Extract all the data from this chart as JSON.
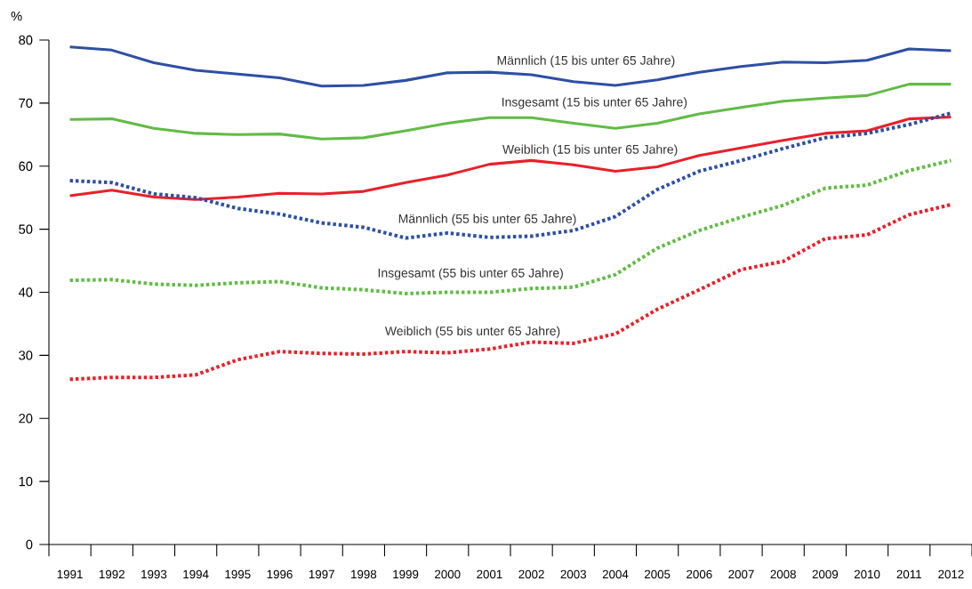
{
  "chart_data": {
    "type": "line",
    "ylabel": "%",
    "categories": [
      "1991",
      "1992",
      "1993",
      "1994",
      "1995",
      "1996",
      "1997",
      "1998",
      "1999",
      "2000",
      "2001",
      "2002",
      "2003",
      "2004",
      "2005",
      "2006",
      "2007",
      "2008",
      "2009",
      "2010",
      "2011",
      "2012"
    ],
    "series": [
      {
        "name": "Männlich (15 bis unter 65 Jahre)",
        "color": "#2e4fa3",
        "line_style": "solid",
        "values": [
          78.9,
          78.4,
          76.4,
          75.2,
          74.6,
          74.0,
          72.7,
          72.8,
          73.6,
          74.8,
          74.9,
          74.5,
          73.4,
          72.8,
          73.7,
          74.9,
          75.8,
          76.5,
          76.4,
          76.8,
          78.6,
          78.3
        ]
      },
      {
        "name": "Insgesamt  (15 bis unter 65 Jahre)",
        "color": "#62bb46",
        "line_style": "solid",
        "values": [
          67.4,
          67.5,
          66.0,
          65.2,
          65.0,
          65.1,
          64.3,
          64.5,
          65.6,
          66.8,
          67.7,
          67.7,
          66.8,
          66.0,
          66.8,
          68.3,
          69.3,
          70.3,
          70.8,
          71.2,
          73.0,
          73.0
        ]
      },
      {
        "name": "Weiblich (15 bis unter 65 Jahre)",
        "color": "#e8202a",
        "line_style": "solid",
        "values": [
          55.3,
          56.2,
          55.1,
          54.7,
          55.1,
          55.7,
          55.6,
          56.0,
          57.4,
          58.6,
          60.3,
          60.9,
          60.2,
          59.2,
          59.9,
          61.7,
          62.9,
          64.1,
          65.2,
          65.6,
          67.5,
          67.8
        ]
      },
      {
        "name": "Männlich (55 bis unter 65 Jahre)",
        "color": "#2e4fa3",
        "line_style": "dotted",
        "values": [
          57.7,
          57.4,
          55.6,
          55.0,
          53.3,
          52.4,
          51.0,
          50.3,
          48.6,
          49.4,
          48.7,
          48.9,
          49.8,
          52.0,
          56.3,
          59.2,
          60.9,
          62.8,
          64.5,
          65.2,
          66.6,
          68.4
        ]
      },
      {
        "name": "Insgesamt  (55 bis unter 65 Jahre)",
        "color": "#62bb46",
        "line_style": "dotted",
        "values": [
          41.9,
          42.0,
          41.3,
          41.1,
          41.5,
          41.7,
          40.7,
          40.4,
          39.8,
          40.0,
          40.0,
          40.6,
          40.8,
          42.8,
          47.0,
          49.8,
          51.9,
          53.8,
          56.5,
          57.0,
          59.3,
          60.9
        ]
      },
      {
        "name": "Weiblich (55 bis unter 65 Jahre)",
        "color": "#e8202a",
        "line_style": "dotted",
        "values": [
          26.2,
          26.5,
          26.5,
          26.9,
          29.3,
          30.6,
          30.3,
          30.2,
          30.6,
          30.4,
          31.0,
          32.1,
          31.9,
          33.4,
          37.3,
          40.4,
          43.6,
          44.9,
          48.5,
          49.1,
          52.3,
          53.9
        ]
      }
    ],
    "ylim": [
      0,
      80
    ],
    "yticks": [
      0,
      10,
      20,
      30,
      40,
      50,
      60,
      70,
      80
    ],
    "grid": false,
    "legend": false
  }
}
